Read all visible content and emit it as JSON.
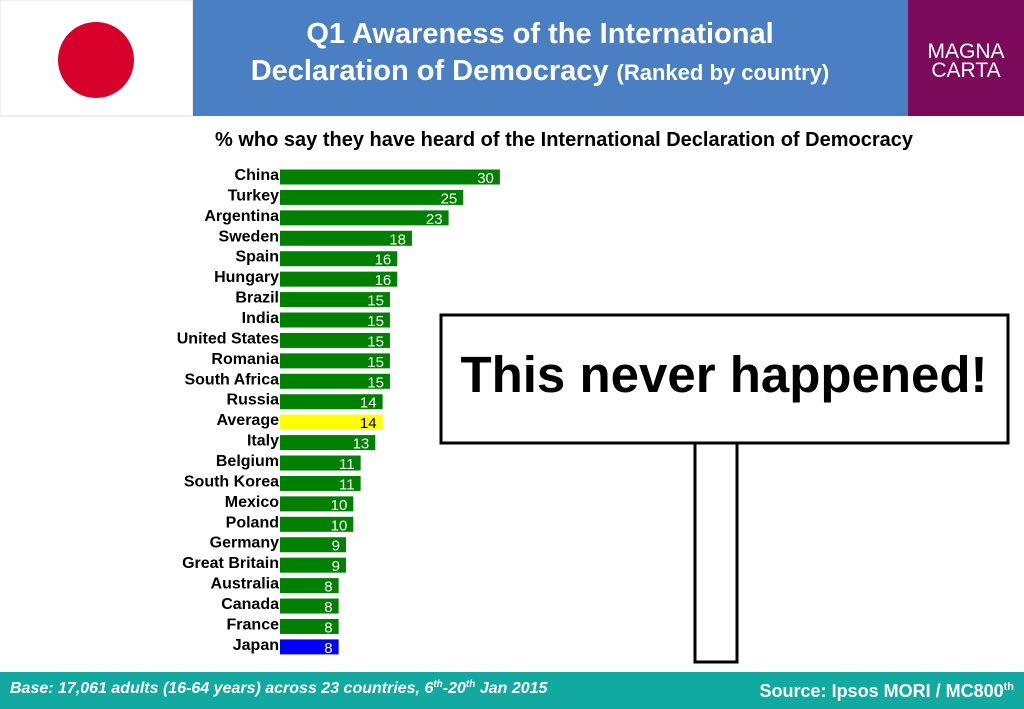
{
  "header": {
    "title": "Q1 Awareness of the International",
    "title_line2": "Declaration of Democracy",
    "title_note": "(Ranked by country)",
    "logo_top": "MAGNA",
    "logo_bottom": "CARTA"
  },
  "chart_data": {
    "type": "bar",
    "orientation": "horizontal",
    "title": "% who say they have heard of the International Declaration of Democracy",
    "categories": [
      "China",
      "Turkey",
      "Argentina",
      "Sweden",
      "Spain",
      "Hungary",
      "Brazil",
      "India",
      "United States",
      "Romania",
      "South Africa",
      "Russia",
      "Average",
      "Italy",
      "Belgium",
      "South Korea",
      "Mexico",
      "Poland",
      "Germany",
      "Great Britain",
      "Australia",
      "Canada",
      "France",
      "Japan"
    ],
    "values": [
      30,
      25,
      23,
      18,
      16,
      16,
      15,
      15,
      15,
      15,
      15,
      14,
      14,
      13,
      11,
      11,
      10,
      10,
      9,
      9,
      8,
      8,
      8,
      8
    ],
    "colors": [
      "#008000",
      "#008000",
      "#008000",
      "#008000",
      "#008000",
      "#008000",
      "#008000",
      "#008000",
      "#008000",
      "#008000",
      "#008000",
      "#008000",
      "#ffff00",
      "#008000",
      "#008000",
      "#008000",
      "#008000",
      "#008000",
      "#008000",
      "#008000",
      "#008000",
      "#008000",
      "#008000",
      "#0000ff"
    ],
    "label_colors": [
      "#ffffff",
      "#ffffff",
      "#ffffff",
      "#ffffff",
      "#ffffff",
      "#ffffff",
      "#ffffff",
      "#ffffff",
      "#ffffff",
      "#ffffff",
      "#ffffff",
      "#ffffff",
      "#000000",
      "#ffffff",
      "#ffffff",
      "#ffffff",
      "#ffffff",
      "#ffffff",
      "#ffffff",
      "#ffffff",
      "#ffffff",
      "#ffffff",
      "#ffffff",
      "#ffffff"
    ]
  },
  "sign": {
    "text": "This never happened!"
  },
  "footer": {
    "base": [
      "Base: 17,061 adults (16-64 years) across 23 countries, 6",
      "th",
      "-20",
      "th",
      " Jan 2015"
    ],
    "source": [
      "Source: Ipsos MORI / MC800",
      "th"
    ]
  }
}
